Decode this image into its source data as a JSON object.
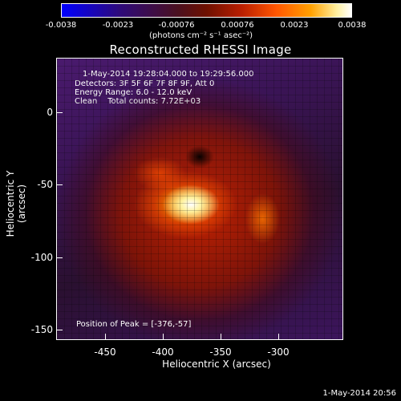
{
  "colorbar": {
    "ticks": [
      "-0.0038",
      "-0.0023",
      "-0.00076",
      "0.00076",
      "0.0023",
      "0.0038"
    ],
    "units": "(photons cm⁻² s⁻¹ asec⁻²)"
  },
  "title": "Reconstructed RHESSI Image",
  "info": {
    "time_range": "1-May-2014 19:28:04.000 to 19:29:56.000",
    "detectors": "Detectors: 3F 5F 6F 7F 8F 9F, Att 0",
    "energy": "Energy Range: 6.0 - 12.0 keV",
    "clean": "Clean    Total counts: 7.72E+03",
    "peak": "Position of Peak = [-376,-57]"
  },
  "axes": {
    "xlabel": "Heliocentric X (arcsec)",
    "ylabel": "Heliocentric Y (arcsec)",
    "xticks": [
      "-450",
      "-400",
      "-350",
      "-300"
    ],
    "yticks": [
      "0",
      "-50",
      "-100",
      "-150"
    ]
  },
  "timestamp": "1-May-2014 20:56"
}
